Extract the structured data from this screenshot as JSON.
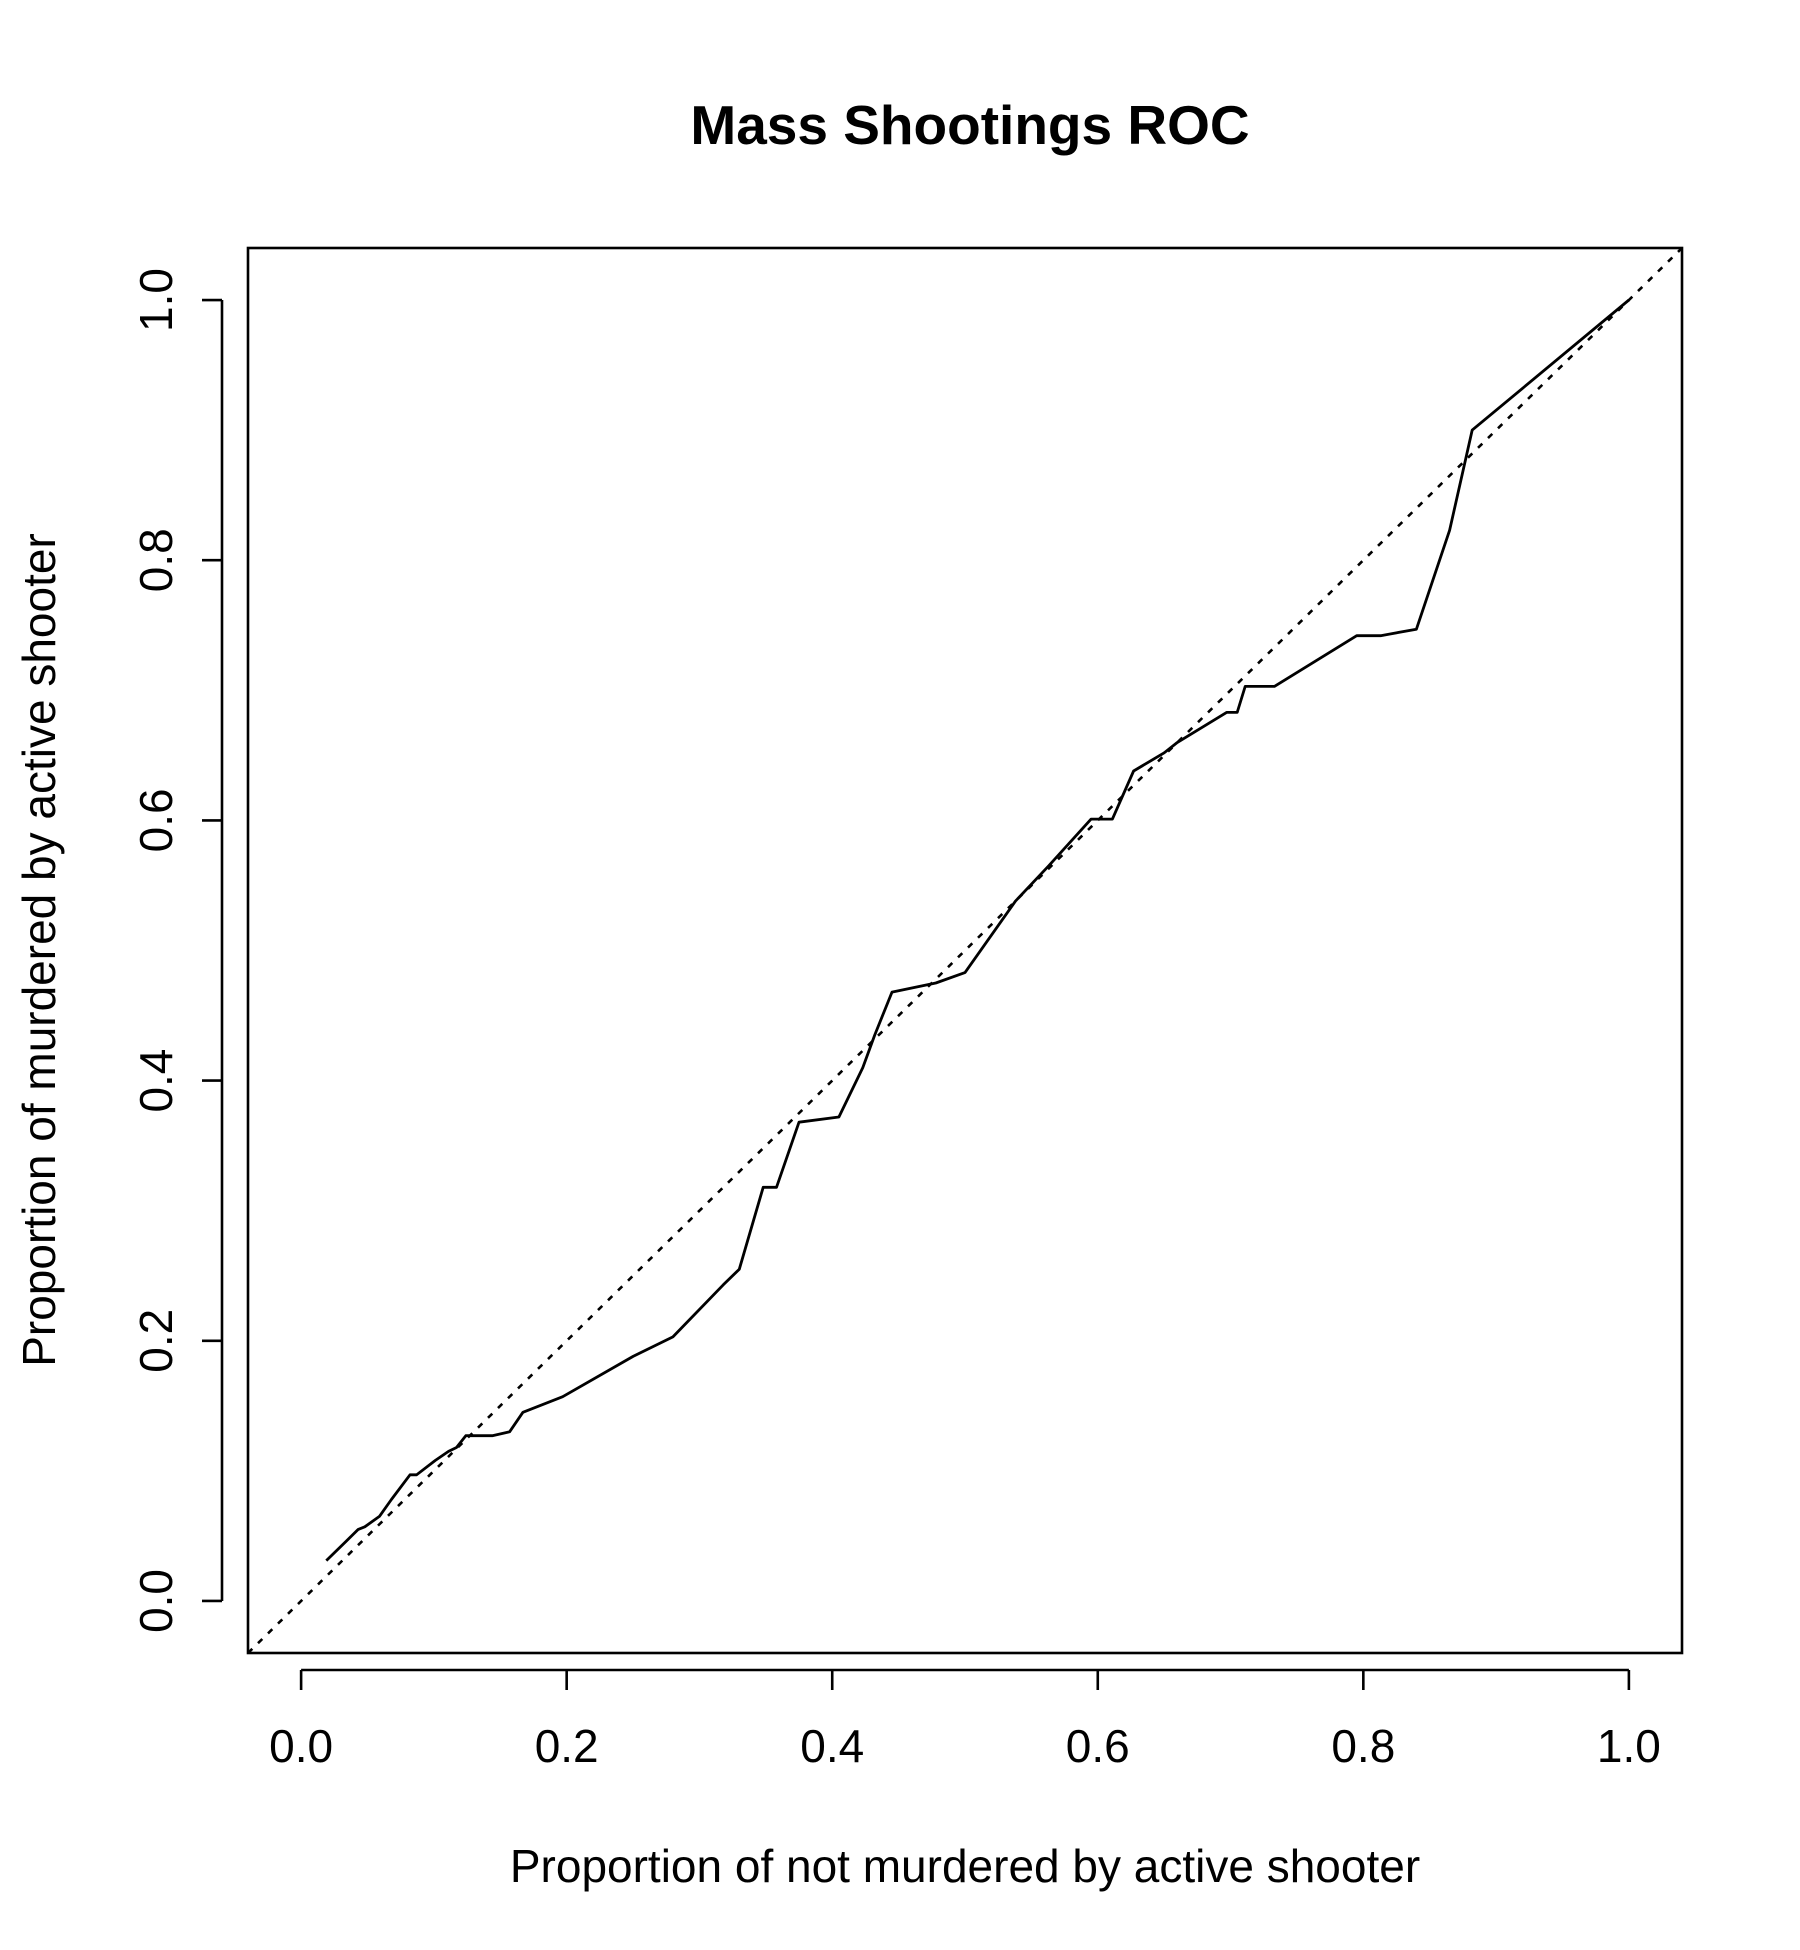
{
  "chart_data": {
    "type": "line",
    "title": "Mass Shootings ROC",
    "xlabel": "Proportion of not murdered by active shooter",
    "ylabel": "Proportion of murdered by active shooter",
    "xlim": [
      -0.04,
      1.04
    ],
    "ylim": [
      -0.04,
      1.04
    ],
    "x_ticks": [
      0.0,
      0.2,
      0.4,
      0.6,
      0.8,
      1.0
    ],
    "x_tick_labels": [
      "0.0",
      "0.2",
      "0.4",
      "0.6",
      "0.8",
      "1.0"
    ],
    "y_ticks": [
      0.0,
      0.2,
      0.4,
      0.6,
      0.8,
      1.0
    ],
    "y_tick_labels": [
      "0.0",
      "0.2",
      "0.4",
      "0.6",
      "0.8",
      "1.0"
    ],
    "grid": false,
    "series": [
      {
        "style": "solid",
        "x": [
          0.019,
          0.034,
          0.043,
          0.048,
          0.059,
          0.068,
          0.082,
          0.087,
          0.101,
          0.111,
          0.117,
          0.124,
          0.144,
          0.157,
          0.167,
          0.197,
          0.25,
          0.28,
          0.318,
          0.33,
          0.348,
          0.358,
          0.375,
          0.405,
          0.423,
          0.432,
          0.445,
          0.478,
          0.5,
          0.538,
          0.563,
          0.595,
          0.601,
          0.611,
          0.627,
          0.65,
          0.66,
          0.697,
          0.705,
          0.711,
          0.733,
          0.795,
          0.813,
          0.84,
          0.865,
          0.882,
          1.0
        ],
        "y": [
          0.031,
          0.046,
          0.055,
          0.057,
          0.065,
          0.078,
          0.097,
          0.097,
          0.108,
          0.115,
          0.118,
          0.127,
          0.127,
          0.13,
          0.145,
          0.157,
          0.188,
          0.203,
          0.243,
          0.255,
          0.318,
          0.318,
          0.368,
          0.372,
          0.41,
          0.435,
          0.468,
          0.475,
          0.483,
          0.538,
          0.565,
          0.601,
          0.601,
          0.601,
          0.638,
          0.652,
          0.66,
          0.683,
          0.683,
          0.703,
          0.703,
          0.742,
          0.742,
          0.747,
          0.823,
          0.9,
          1.0
        ]
      },
      {
        "style": "dotted",
        "x": [
          -0.04,
          1.04
        ],
        "y": [
          -0.04,
          1.04
        ]
      }
    ]
  }
}
